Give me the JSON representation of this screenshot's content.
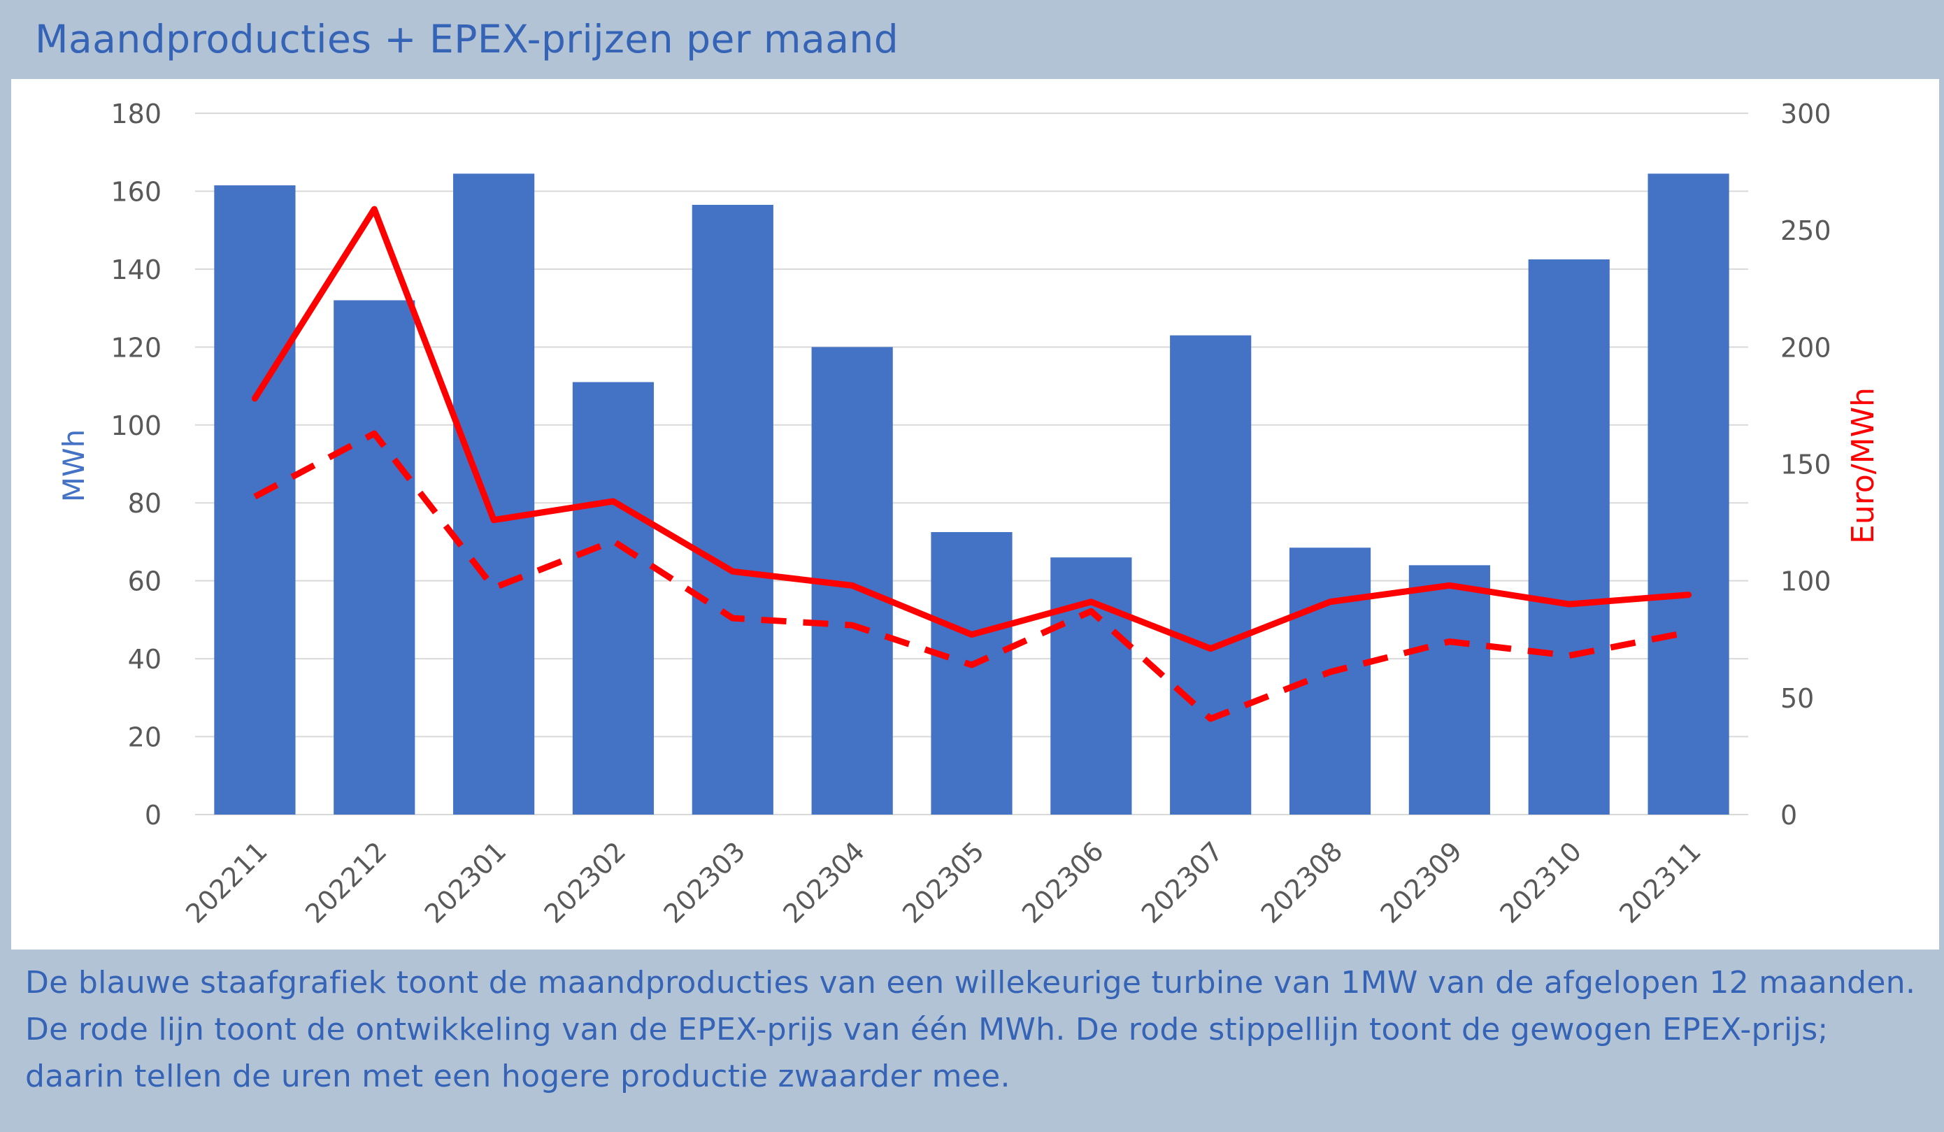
{
  "title": "Maandproducties + EPEX-prijzen per maand",
  "caption": {
    "line1": "De blauwe staafgrafiek toont de maandproducties van een willekeurige turbine van 1MW van de afgelopen 12 maanden.",
    "line2": "De rode lijn toont de ontwikkeling van de EPEX-prijs van één MWh. De rode stippellijn toont de gewogen EPEX-prijs;",
    "line3": "daarin tellen de uren met een hogere productie zwaarder mee."
  },
  "colors": {
    "bars": "#4472c4",
    "price_line": "#ff0000",
    "weighted_line": "#ff0000",
    "title": "#3563b6",
    "background_band": "#b3c3d6",
    "grid": "#d9d9d9",
    "tick_text": "#595959"
  },
  "chart_data": {
    "type": "bar",
    "categories": [
      "202211",
      "202212",
      "202301",
      "202302",
      "202303",
      "202304",
      "202305",
      "202306",
      "202307",
      "202308",
      "202309",
      "202310",
      "202311"
    ],
    "series": [
      {
        "type": "bar",
        "axis": "left",
        "values": [
          161.5,
          132,
          164.5,
          111,
          156.5,
          120,
          72.5,
          66,
          123,
          68.5,
          64,
          142.5,
          164.5
        ]
      },
      {
        "type": "line",
        "axis": "right",
        "style": "solid",
        "values": [
          178,
          259,
          126,
          134,
          104,
          98,
          77,
          91,
          71,
          91,
          98,
          90,
          94
        ]
      },
      {
        "type": "line",
        "axis": "right",
        "style": "dashed",
        "values": [
          136,
          163,
          97,
          117,
          84,
          81,
          64,
          87,
          41,
          61,
          74,
          68,
          78
        ]
      }
    ],
    "ylabel": "MWh",
    "y2label": "Euro/MWh",
    "ylim": [
      0,
      180
    ],
    "y2lim": [
      0,
      300
    ],
    "yticks": [
      "0",
      "20",
      "40",
      "60",
      "80",
      "100",
      "120",
      "140",
      "160",
      "180"
    ],
    "y2ticks": [
      "0",
      "50",
      "100",
      "150",
      "200",
      "250",
      "300"
    ],
    "grid": true,
    "legend": "none"
  }
}
